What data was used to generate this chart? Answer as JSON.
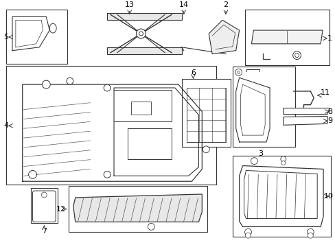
{
  "background_color": "#ffffff",
  "line_color": "#333333",
  "text_color": "#000000",
  "fig_width": 4.89,
  "fig_height": 3.6,
  "dpi": 100
}
